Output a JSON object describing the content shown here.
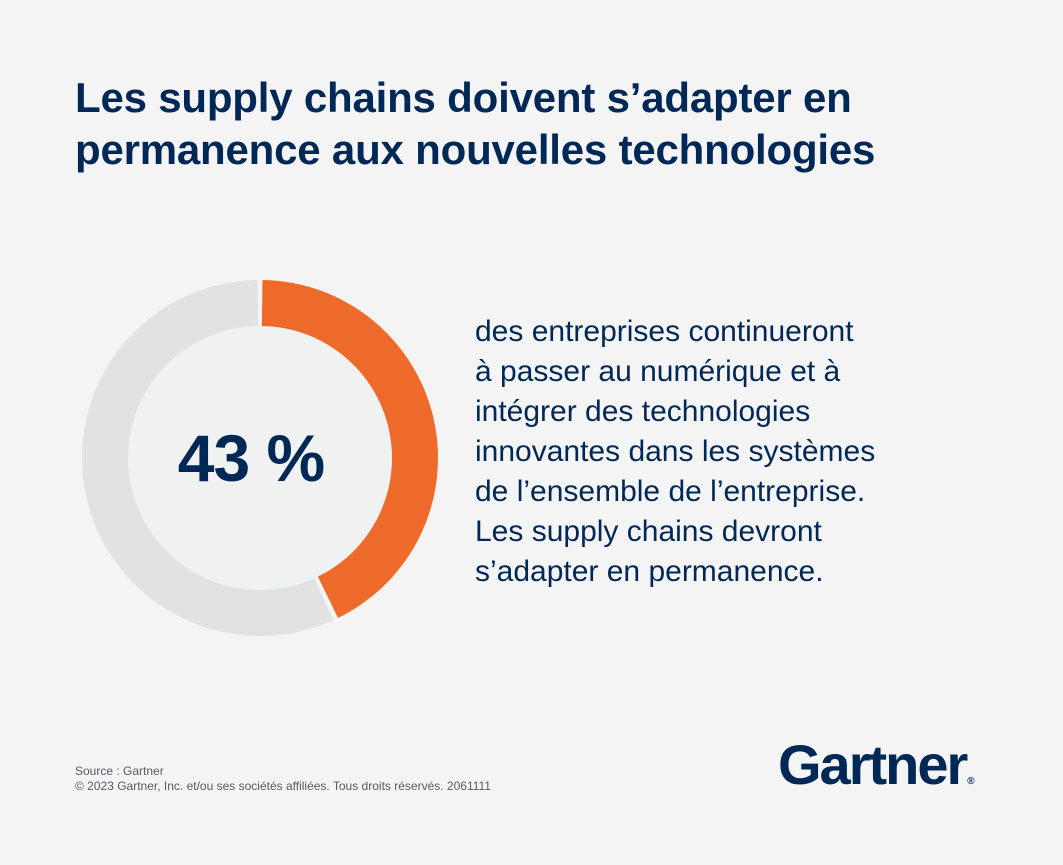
{
  "title": "Les supply chains doivent s’adapter en permanence aux nouvelles technologies",
  "stat": {
    "value_label": "43 %",
    "description": "des entreprises continueront\nà passer au numérique et à\nintégrer des technologies\ninnovantes dans les systèmes\nde l’ensemble de l’entreprise.\nLes supply chains devront\ns’adapter en permanence."
  },
  "chart_data": {
    "type": "pie",
    "subtype": "donut",
    "values": [
      43,
      57
    ],
    "colors": [
      "#ee6a2a",
      "#e2e2e2"
    ],
    "center_label": "43 %"
  },
  "footer": {
    "source": "Source : Gartner",
    "copyright": "© 2023 Gartner, Inc. et/ou ses sociétés affiliées. Tous droits réservés. 2061111"
  },
  "logo": {
    "text": "Gartner",
    "mark": "®"
  },
  "colors": {
    "background": "#f4f4f4",
    "navy": "#002856",
    "accent": "#ee6a2a",
    "remainder": "#e2e2e2",
    "inner": "#f0f1f1"
  }
}
